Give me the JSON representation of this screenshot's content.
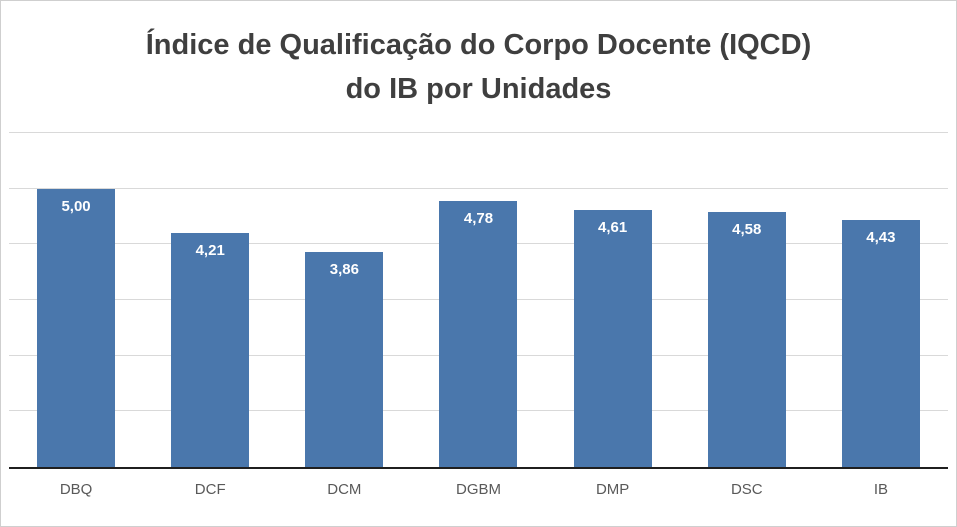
{
  "chart_data": {
    "type": "bar",
    "title": "Índice de Qualificação do Corpo Docente (IQCD) do IB por Unidades",
    "title_line1": "Índice de Qualificação do Corpo Docente (IQCD)",
    "title_line2": "do IB por Unidades",
    "categories": [
      "DBQ",
      "DCF",
      "DCM",
      "DGBM",
      "DMP",
      "DSC",
      "IB"
    ],
    "values": [
      5.0,
      4.21,
      3.86,
      4.78,
      4.61,
      4.58,
      4.43
    ],
    "value_labels": [
      "5,00",
      "4,21",
      "3,86",
      "4,78",
      "4,61",
      "4,58",
      "4,43"
    ],
    "xlabel": "",
    "ylabel": "",
    "ylim": [
      0,
      6
    ],
    "gridline_step": 1,
    "grid": true,
    "legend": "none",
    "colors": {
      "bar": "#4a77ac",
      "value_label": "#ffffff",
      "axis_label": "#595959",
      "gridline": "#d9d9d9",
      "axis_line": "#1f1f1f",
      "title": "#3f3f3f"
    }
  }
}
